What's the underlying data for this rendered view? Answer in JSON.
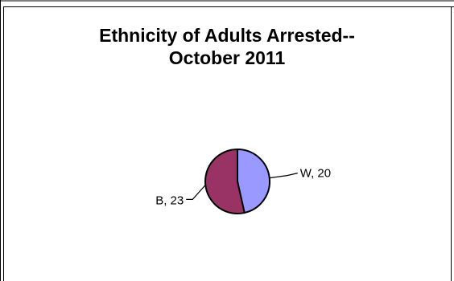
{
  "chart_data": {
    "type": "pie",
    "title_line1": "Ethnicity of Adults Arrested--",
    "title_line2": "October 2011",
    "slices": [
      {
        "label": "W",
        "value": 20,
        "color": "#9999ff",
        "data_label": "W, 20"
      },
      {
        "label": "B",
        "value": 23,
        "color": "#993366",
        "data_label": "B, 23"
      }
    ]
  }
}
